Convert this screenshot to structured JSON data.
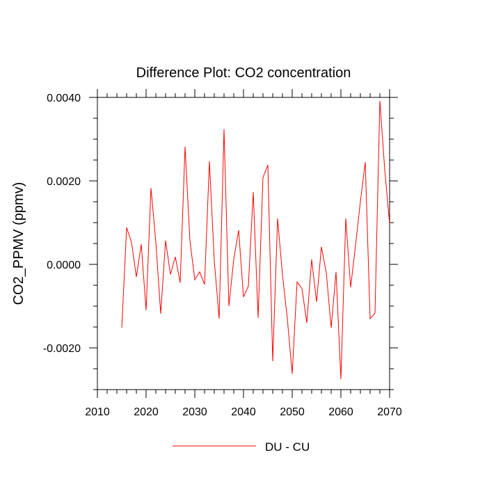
{
  "chart_data": {
    "type": "line",
    "title": "Difference Plot: CO2 concentration",
    "xlabel": "",
    "ylabel": "CO2_PPMV  (ppmv)",
    "xlim": [
      2010,
      2070
    ],
    "ylim": [
      -0.003,
      0.004
    ],
    "x_ticks": [
      2010,
      2020,
      2030,
      2040,
      2050,
      2060,
      2070
    ],
    "x_tick_labels": [
      "2010",
      "2020",
      "2030",
      "2040",
      "2050",
      "2060",
      "2070"
    ],
    "y_ticks": [
      -0.002,
      0.0,
      0.002,
      0.004
    ],
    "y_tick_labels": [
      "-0.0020",
      "0.0000",
      "0.0020",
      "0.0040"
    ],
    "grid": false,
    "legend_position": "bottom-center",
    "series": [
      {
        "name": "DU - CU",
        "color": "#ff0000",
        "x": [
          2015,
          2016,
          2017,
          2018,
          2019,
          2020,
          2021,
          2022,
          2023,
          2024,
          2025,
          2026,
          2027,
          2028,
          2029,
          2030,
          2031,
          2032,
          2033,
          2034,
          2035,
          2036,
          2037,
          2038,
          2039,
          2040,
          2041,
          2042,
          2043,
          2044,
          2045,
          2046,
          2047,
          2048,
          2049,
          2050,
          2051,
          2052,
          2053,
          2054,
          2055,
          2056,
          2057,
          2058,
          2059,
          2060,
          2061,
          2062,
          2063,
          2064,
          2065,
          2066,
          2067,
          2068,
          2069,
          2070
        ],
        "values": [
          -0.00152,
          0.00088,
          0.00053,
          -0.0003,
          0.00048,
          -0.0011,
          0.00183,
          0.00053,
          -0.00118,
          0.00057,
          -0.00024,
          0.00018,
          -0.00044,
          0.00282,
          0.00057,
          -0.00037,
          -0.00018,
          -0.00048,
          0.00247,
          8e-05,
          -0.0013,
          0.00324,
          -0.001,
          0.00012,
          0.00082,
          -0.00078,
          -0.00052,
          0.00173,
          -0.00128,
          0.00208,
          0.00238,
          -0.00232,
          0.0011,
          -0.00025,
          -0.0013,
          -0.00262,
          -0.00042,
          -0.00058,
          -0.0014,
          0.00012,
          -0.0009,
          0.00042,
          -0.0002,
          -0.00152,
          -0.00018,
          -0.00275,
          0.0011,
          -0.00055,
          0.00045,
          0.0015,
          0.00245,
          -0.0013,
          -0.00117,
          0.00392,
          0.00227,
          0.00097
        ]
      }
    ]
  }
}
